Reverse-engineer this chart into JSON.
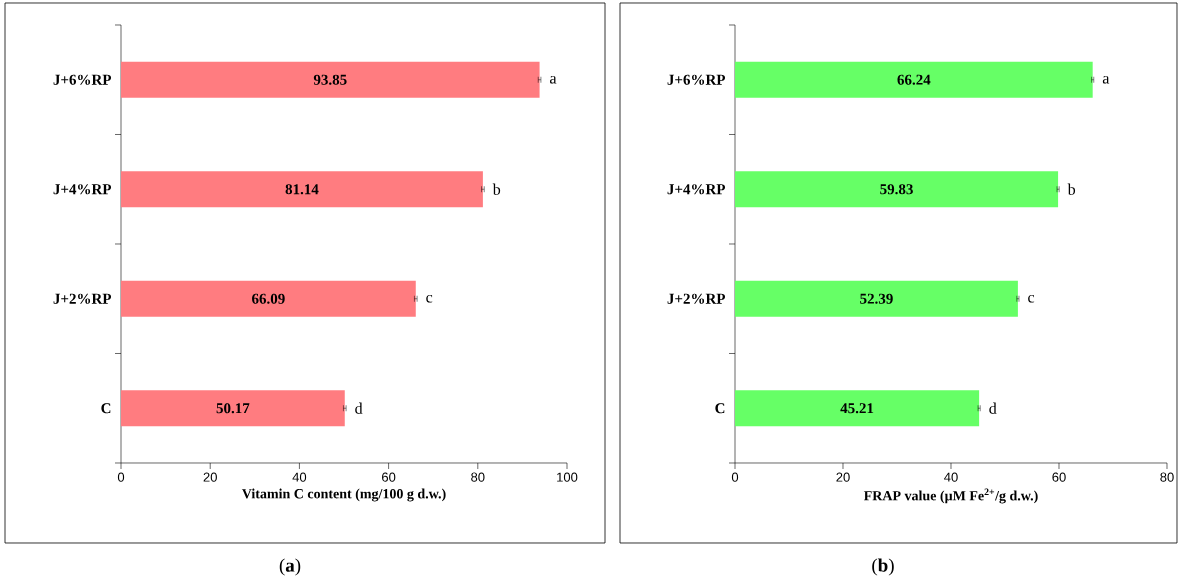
{
  "chart_data": [
    {
      "type": "bar",
      "orientation": "horizontal",
      "title": "(**a**)",
      "xlabel": "Vitamin C content (mg/100 g d.w.)",
      "categories": [
        "J+6%RP",
        "J+4%RP",
        "J+2%RP",
        "C"
      ],
      "values": [
        93.85,
        81.14,
        66.09,
        50.17
      ],
      "errors": [
        0.3,
        0.3,
        0.3,
        0.3
      ],
      "color": "#ff7c80",
      "xlim": [
        0,
        100
      ],
      "xticks": [
        0,
        20,
        40,
        60,
        80,
        100
      ],
      "data_labels": true,
      "annotations": [
        {
          "text": "a",
          "x": 93.85,
          "y": "J+6%RP"
        },
        {
          "text": "b",
          "x": 81.14,
          "y": "J+4%RP"
        },
        {
          "text": "c",
          "x": 66.09,
          "y": "J+2%RP"
        },
        {
          "text": "d",
          "x": 50.17,
          "y": "C"
        }
      ]
    },
    {
      "type": "bar",
      "orientation": "horizontal",
      "title": "(**b**)",
      "xlabel": "FRAP value (µM Fe$^{2+}$/g d.w.)",
      "categories": [
        "J+6%RP",
        "J+4%RP",
        "J+2%RP",
        "C"
      ],
      "values": [
        66.24,
        59.83,
        52.39,
        45.21
      ],
      "errors": [
        0.2,
        0.2,
        0.2,
        0.2
      ],
      "color": "#66ff66",
      "xlim": [
        0,
        80
      ],
      "xticks": [
        0,
        20,
        40,
        60,
        80
      ],
      "data_labels": true,
      "annotations": [
        {
          "text": "a",
          "x": 66.24,
          "y": "J+6%RP"
        },
        {
          "text": "b",
          "x": 59.83,
          "y": "J+4%RP"
        },
        {
          "text": "c",
          "x": 52.39,
          "y": "J+2%RP"
        },
        {
          "text": "d",
          "x": 45.21,
          "y": "C"
        }
      ]
    }
  ]
}
